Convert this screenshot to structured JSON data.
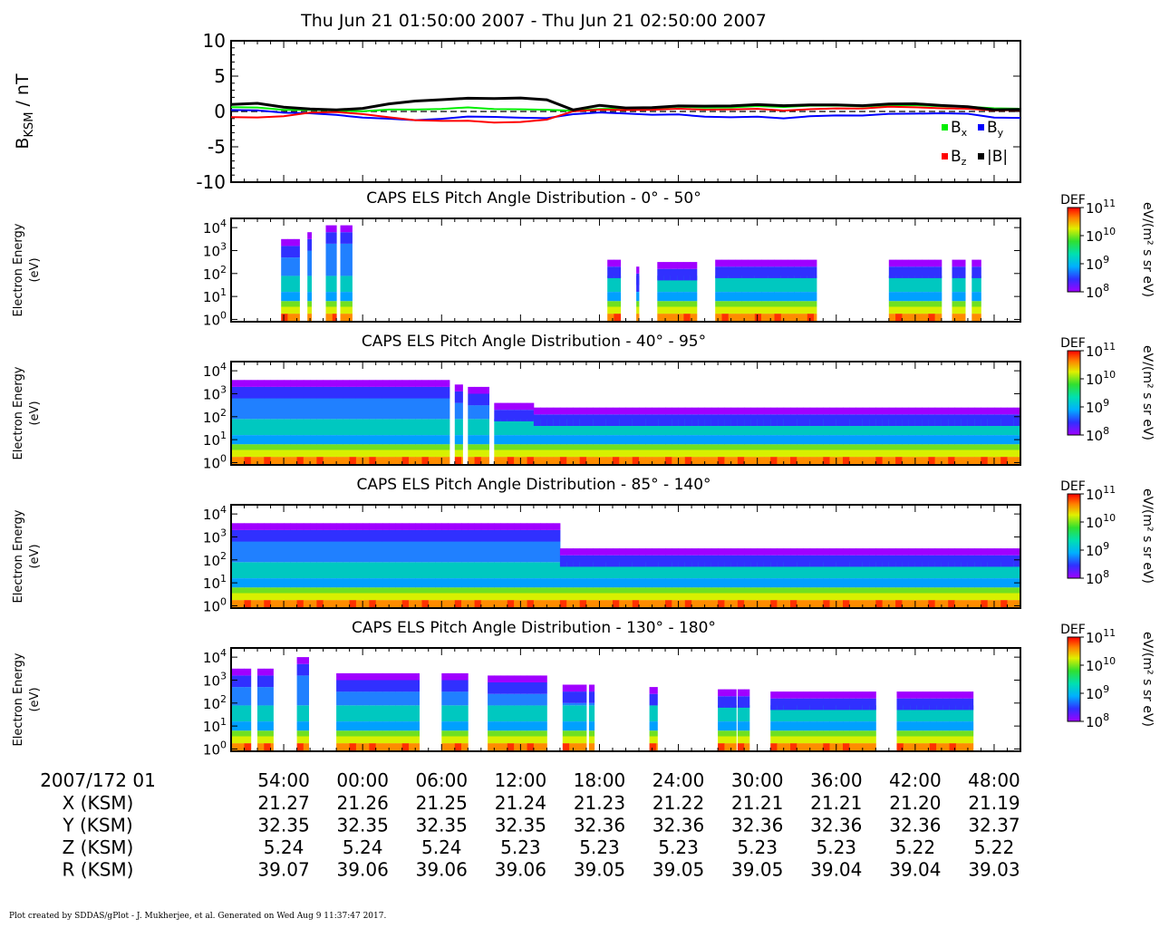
{
  "header": {
    "title": "Thu Jun 21 01:50:00 2007 - Thu Jun 21 02:50:00 2007"
  },
  "footer": {
    "credit": "Plot created by SDDAS/gPlot - J. Mukherjee, et al.  Generated on Wed Aug 9 11:37:47 2017."
  },
  "mag_panel": {
    "ylabel_main": "B",
    "ylabel_sub": "KSM",
    "ylabel_unit": " / nT",
    "legend": [
      {
        "label": "B",
        "sub": "x",
        "color": "#00ee00"
      },
      {
        "label": "B",
        "sub": "y",
        "color": "#0000ff"
      },
      {
        "label": "B",
        "sub": "z",
        "color": "#ff0000"
      },
      {
        "label": "|B|",
        "sub": "",
        "color": "#000000"
      }
    ]
  },
  "spectro_common": {
    "ylabel1": "Electron Energy",
    "ylabel2": "(eV)",
    "colorbar_title": "DEF",
    "colorbar_unit": "eV/(m² s sr eV)",
    "colorbar_ticks": [
      {
        "base": "10",
        "exp": "11"
      },
      {
        "base": "10",
        "exp": "10"
      },
      {
        "base": "10",
        "exp": "9"
      },
      {
        "base": "10",
        "exp": "8"
      }
    ],
    "yticks": [
      {
        "base": "10",
        "exp": "4"
      },
      {
        "base": "10",
        "exp": "3"
      },
      {
        "base": "10",
        "exp": "2"
      },
      {
        "base": "10",
        "exp": "1"
      },
      {
        "base": "10",
        "exp": "0"
      }
    ]
  },
  "ephemeris": {
    "date_label": "2007/172 01",
    "rows": [
      {
        "label": "X (KSM)",
        "values": [
          "21.27",
          "21.26",
          "21.25",
          "21.24",
          "21.23",
          "21.22",
          "21.21",
          "21.21",
          "21.20",
          "21.19"
        ]
      },
      {
        "label": "Y (KSM)",
        "values": [
          "32.35",
          "32.35",
          "32.35",
          "32.35",
          "32.36",
          "32.36",
          "32.36",
          "32.36",
          "32.36",
          "32.37"
        ]
      },
      {
        "label": "Z (KSM)",
        "values": [
          "5.24",
          "5.24",
          "5.24",
          "5.23",
          "5.23",
          "5.23",
          "5.23",
          "5.23",
          "5.22",
          "5.22"
        ]
      },
      {
        "label": "R (KSM)",
        "values": [
          "39.07",
          "39.06",
          "39.06",
          "39.06",
          "39.05",
          "39.05",
          "39.05",
          "39.04",
          "39.04",
          "39.03"
        ]
      }
    ]
  },
  "chart_data": [
    {
      "type": "line",
      "x_minutes": [
        0,
        2,
        4,
        6,
        8,
        10,
        12,
        14,
        16,
        18,
        20,
        22,
        24,
        26,
        28,
        30,
        32,
        34,
        36,
        38,
        40,
        42,
        44,
        46,
        48,
        50,
        52,
        54,
        56,
        58,
        60
      ],
      "ylim": [
        -10,
        10
      ],
      "yticks": [
        "10",
        "5",
        "0",
        "-5",
        "-10"
      ],
      "series": [
        {
          "name": "Bx",
          "color": "#00ee00",
          "values": [
            0.6,
            0.5,
            0.3,
            0.2,
            0.1,
            0.1,
            0.2,
            0.3,
            0.4,
            0.5,
            0.4,
            0.3,
            0.2,
            0.2,
            0.3,
            0.4,
            0.5,
            0.6,
            0.6,
            0.6,
            0.7,
            0.7,
            0.8,
            0.8,
            0.8,
            0.8,
            0.9,
            0.8,
            0.6,
            0.5,
            0.4
          ]
        },
        {
          "name": "By",
          "color": "#0000ff",
          "values": [
            0.2,
            0.1,
            -0.1,
            -0.3,
            -0.5,
            -0.8,
            -1.1,
            -1.2,
            -1.0,
            -0.8,
            -0.7,
            -0.9,
            -1.0,
            -0.3,
            -0.2,
            -0.3,
            -0.4,
            -0.5,
            -0.7,
            -0.8,
            -0.8,
            -0.9,
            -0.7,
            -0.6,
            -0.5,
            -0.4,
            -0.3,
            -0.2,
            -0.4,
            -0.8,
            -0.9
          ]
        },
        {
          "name": "Bz",
          "color": "#ff0000",
          "values": [
            -0.8,
            -0.9,
            -0.6,
            -0.2,
            -0.1,
            -0.3,
            -0.9,
            -1.2,
            -1.3,
            -1.4,
            -1.5,
            -1.5,
            -1.2,
            0.1,
            0.2,
            0.2,
            0.3,
            0.3,
            0.3,
            0.3,
            0.3,
            0.2,
            0.3,
            0.4,
            0.5,
            0.6,
            0.6,
            0.5,
            0.3,
            0.2,
            0.2
          ]
        },
        {
          "name": "|B|",
          "color": "#000000",
          "values": [
            1.0,
            1.1,
            0.7,
            0.3,
            0.2,
            0.5,
            1.0,
            1.5,
            1.7,
            1.8,
            1.9,
            1.9,
            1.6,
            0.3,
            0.8,
            0.5,
            0.6,
            0.7,
            0.8,
            0.8,
            0.9,
            0.9,
            0.9,
            0.9,
            0.9,
            1.0,
            1.1,
            0.9,
            0.6,
            0.3,
            0.3
          ]
        }
      ]
    },
    {
      "type": "heatmap",
      "title": "CAPS ELS Pitch Angle Distribution - 0° - 50°",
      "log_energy_range": [
        -0.1,
        4.4
      ],
      "color_range_log_def": [
        8,
        11
      ],
      "segments": [
        {
          "t": [
            3.8,
            5.2
          ],
          "top": 3.5
        },
        {
          "t": [
            5.8,
            6.1
          ],
          "top": 3.8
        },
        {
          "t": [
            7.2,
            8.0
          ],
          "top": 4.1
        },
        {
          "t": [
            8.3,
            9.2
          ],
          "top": 4.1
        },
        {
          "t": [
            28.6,
            29.6
          ],
          "top": 2.6
        },
        {
          "t": [
            30.8,
            31.0
          ],
          "top": 2.3
        },
        {
          "t": [
            32.4,
            35.4
          ],
          "top": 2.5
        },
        {
          "t": [
            36.8,
            44.5
          ],
          "top": 2.6
        },
        {
          "t": [
            50.0,
            54.0
          ],
          "top": 2.6
        },
        {
          "t": [
            54.8,
            55.8
          ],
          "top": 2.6
        },
        {
          "t": [
            56.3,
            57.0
          ],
          "top": 2.6
        }
      ]
    },
    {
      "type": "heatmap",
      "title": "CAPS ELS Pitch Angle Distribution - 40° - 95°",
      "log_energy_range": [
        -0.1,
        4.4
      ],
      "color_range_log_def": [
        8,
        11
      ],
      "segments": [
        {
          "t": [
            0,
            16.6
          ],
          "top": 3.6
        },
        {
          "t": [
            17.0,
            17.6
          ],
          "top": 3.4
        },
        {
          "t": [
            18.0,
            19.6
          ],
          "top": 3.3
        },
        {
          "t": [
            20.0,
            23.0
          ],
          "top": 2.6
        },
        {
          "t": [
            23.0,
            60.0
          ],
          "top": 2.4
        }
      ]
    },
    {
      "type": "heatmap",
      "title": "CAPS ELS Pitch Angle Distribution - 85° - 140°",
      "log_energy_range": [
        -0.1,
        4.4
      ],
      "color_range_log_def": [
        8,
        11
      ],
      "segments": [
        {
          "t": [
            0,
            25.0
          ],
          "top": 3.6
        },
        {
          "t": [
            25.0,
            60.0
          ],
          "top": 2.5
        }
      ]
    },
    {
      "type": "heatmap",
      "title": "CAPS ELS Pitch Angle Distribution - 130° - 180°",
      "log_energy_range": [
        -0.1,
        4.4
      ],
      "color_range_log_def": [
        8,
        11
      ],
      "segments": [
        {
          "t": [
            0,
            1.5
          ],
          "top": 3.5
        },
        {
          "t": [
            2.0,
            3.2
          ],
          "top": 3.5
        },
        {
          "t": [
            5.0,
            5.9
          ],
          "top": 4.0
        },
        {
          "t": [
            8.0,
            14.3
          ],
          "top": 3.3
        },
        {
          "t": [
            16.0,
            18.0
          ],
          "top": 3.3
        },
        {
          "t": [
            19.5,
            24.0
          ],
          "top": 3.2
        },
        {
          "t": [
            25.2,
            27.0
          ],
          "top": 2.8
        },
        {
          "t": [
            27.2,
            27.6
          ],
          "top": 2.8
        },
        {
          "t": [
            31.8,
            32.4
          ],
          "top": 2.7
        },
        {
          "t": [
            37.0,
            38.4
          ],
          "top": 2.6
        },
        {
          "t": [
            38.5,
            39.4
          ],
          "top": 2.6
        },
        {
          "t": [
            41.0,
            49.0
          ],
          "top": 2.5
        },
        {
          "t": [
            50.6,
            56.4
          ],
          "top": 2.5
        }
      ]
    }
  ],
  "time_axis": {
    "range_minutes": [
      0,
      60
    ],
    "ticks": [
      {
        "t": 4,
        "label": "54:00"
      },
      {
        "t": 10,
        "label": "00:00"
      },
      {
        "t": 16,
        "label": "06:00"
      },
      {
        "t": 22,
        "label": "12:00"
      },
      {
        "t": 28,
        "label": "18:00"
      },
      {
        "t": 34,
        "label": "24:00"
      },
      {
        "t": 40,
        "label": "30:00"
      },
      {
        "t": 46,
        "label": "36:00"
      },
      {
        "t": 52,
        "label": "42:00"
      },
      {
        "t": 58,
        "label": "48:00"
      }
    ]
  }
}
